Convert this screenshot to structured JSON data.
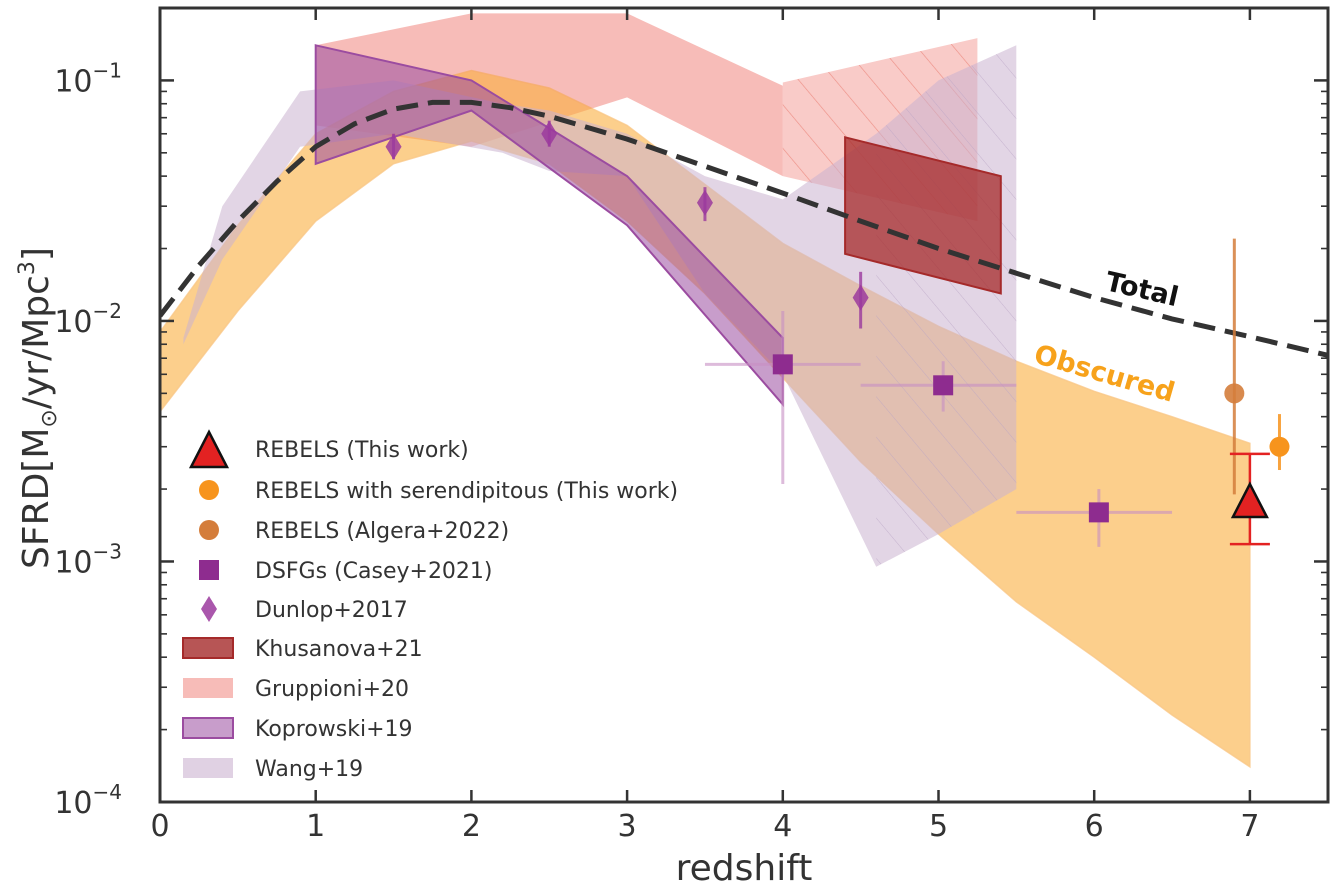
{
  "chart_data": {
    "type": "scatter",
    "xlabel": "redshift",
    "ylabel_parts": [
      "SFRD[M",
      "⊙",
      "/yr/Mpc",
      "3",
      "]"
    ],
    "xlim": [
      0,
      7.5
    ],
    "ylim": [
      0.0001,
      0.2
    ],
    "yscale": "log",
    "grid": false,
    "x_ticks": [
      0,
      1,
      2,
      3,
      4,
      5,
      6,
      7
    ],
    "y_ticks": [
      {
        "value": 0.1,
        "base": "10",
        "exp": "−1"
      },
      {
        "value": 0.01,
        "base": "10",
        "exp": "−2"
      },
      {
        "value": 0.001,
        "base": "10",
        "exp": "−3"
      },
      {
        "value": 0.0001,
        "base": "10",
        "exp": "−4"
      }
    ],
    "annotations": {
      "total": "Total",
      "obscured": "Obscured"
    },
    "colors": {
      "total_line": "#333333",
      "obscured_band": "#fbb040",
      "rebels": "#e32222",
      "serendipitous": "#f7941d",
      "algera": "#d47d3b",
      "casey": "#8e2c8f",
      "dunlop": "#9b3a9e",
      "khusanova": "#a52a2a",
      "gruppioni": "#f4a09a",
      "koprowski": "#9b4ca0",
      "wang": "#cbb3d0"
    },
    "total_curve": {
      "x": [
        0,
        0.25,
        0.5,
        0.75,
        1,
        1.25,
        1.5,
        1.75,
        2,
        2.25,
        2.5,
        3,
        3.5,
        4,
        4.5,
        5,
        5.5,
        6,
        6.5,
        7,
        7.5
      ],
      "y": [
        0.0105,
        0.017,
        0.026,
        0.038,
        0.053,
        0.066,
        0.076,
        0.081,
        0.081,
        0.077,
        0.071,
        0.057,
        0.044,
        0.034,
        0.026,
        0.02,
        0.0158,
        0.0125,
        0.0102,
        0.0086,
        0.0072
      ]
    },
    "obscured_band": {
      "x": [
        0,
        0.5,
        1,
        1.5,
        2,
        2.5,
        3,
        3.5,
        4,
        4.5,
        5,
        5.5,
        6,
        6.5,
        7
      ],
      "upper": [
        0.009,
        0.025,
        0.06,
        0.09,
        0.11,
        0.093,
        0.065,
        0.037,
        0.021,
        0.014,
        0.0095,
        0.0068,
        0.0051,
        0.004,
        0.0031
      ],
      "lower": [
        0.0042,
        0.011,
        0.026,
        0.045,
        0.056,
        0.045,
        0.026,
        0.013,
        0.0058,
        0.0026,
        0.0013,
        0.00068,
        0.0004,
        0.00023,
        0.00014
      ]
    },
    "series": [
      {
        "name": "REBELS (This work)",
        "marker": "triangle",
        "points": [
          {
            "x": 7.0,
            "y": 0.00175,
            "ylo": 0.00118,
            "yhi": 0.0028
          }
        ]
      },
      {
        "name": "REBELS with serendipitous (This work)",
        "marker": "circle",
        "points": [
          {
            "x": 7.19,
            "y": 0.003,
            "ylo": 0.0024,
            "yhi": 0.0041
          }
        ]
      },
      {
        "name": "REBELS (Algera+2022)",
        "marker": "circle",
        "points": [
          {
            "x": 6.9,
            "y": 0.005,
            "ylo": 0.0019,
            "yhi": 0.022
          }
        ]
      },
      {
        "name": "DSFGs (Casey+2021)",
        "marker": "square",
        "points": [
          {
            "x": 4.0,
            "y": 0.0066,
            "xlo": 3.5,
            "xhi": 4.5,
            "ylo": 0.0021,
            "yhi": 0.011
          },
          {
            "x": 5.03,
            "y": 0.0054,
            "xlo": 4.5,
            "xhi": 5.5,
            "ylo": 0.0042,
            "yhi": 0.0068
          },
          {
            "x": 6.03,
            "y": 0.0016,
            "xlo": 5.5,
            "xhi": 6.5,
            "ylo": 0.00115,
            "yhi": 0.002
          }
        ]
      },
      {
        "name": "Dunlop+2017",
        "marker": "diamond",
        "points": [
          {
            "x": 1.5,
            "y": 0.053,
            "ylo": 0.047,
            "yhi": 0.06
          },
          {
            "x": 2.5,
            "y": 0.06,
            "ylo": 0.053,
            "yhi": 0.068
          },
          {
            "x": 3.5,
            "y": 0.031,
            "ylo": 0.026,
            "yhi": 0.036
          },
          {
            "x": 4.5,
            "y": 0.0125,
            "ylo": 0.0093,
            "yhi": 0.016
          }
        ]
      },
      {
        "name": "Khusanova+21",
        "marker": "band",
        "x": [
          4.4,
          5.4
        ],
        "upper": [
          0.058,
          0.04
        ],
        "lower": [
          0.019,
          0.013
        ]
      },
      {
        "name": "Gruppioni+20",
        "marker": "band",
        "x": [
          1,
          2,
          3,
          4,
          4,
          5.25
        ],
        "upper": [
          0.14,
          0.19,
          0.19,
          0.095,
          0.098,
          0.15
        ],
        "lower": [
          0.065,
          0.053,
          0.085,
          0.04,
          0.04,
          0.026
        ]
      },
      {
        "name": "Koprowski+19",
        "marker": "band",
        "x": [
          1,
          2,
          3,
          4
        ],
        "upper": [
          0.14,
          0.1,
          0.04,
          0.0085
        ],
        "lower": [
          0.045,
          0.075,
          0.025,
          0.0045
        ]
      },
      {
        "name": "Wang+19",
        "marker": "band",
        "x": [
          0.15,
          0.4,
          0.9,
          1.5,
          2.2,
          2.5,
          3,
          3.5,
          4,
          4.6,
          5,
          5.5
        ],
        "upper": [
          0.0085,
          0.03,
          0.09,
          0.1,
          0.08,
          0.075,
          0.06,
          0.04,
          0.032,
          0.06,
          0.1,
          0.14
        ],
        "lower": [
          0.008,
          0.018,
          0.053,
          0.06,
          0.05,
          0.042,
          0.04,
          0.013,
          0.006,
          0.00095,
          0.0013,
          0.002
        ]
      }
    ],
    "legend": {
      "position": "lower-left",
      "entries": [
        "REBELS (This work)",
        "REBELS with serendipitous (This work)",
        "REBELS (Algera+2022)",
        "DSFGs (Casey+2021)",
        "Dunlop+2017",
        "Khusanova+21",
        "Gruppioni+20",
        "Koprowski+19",
        "Wang+19"
      ]
    }
  }
}
